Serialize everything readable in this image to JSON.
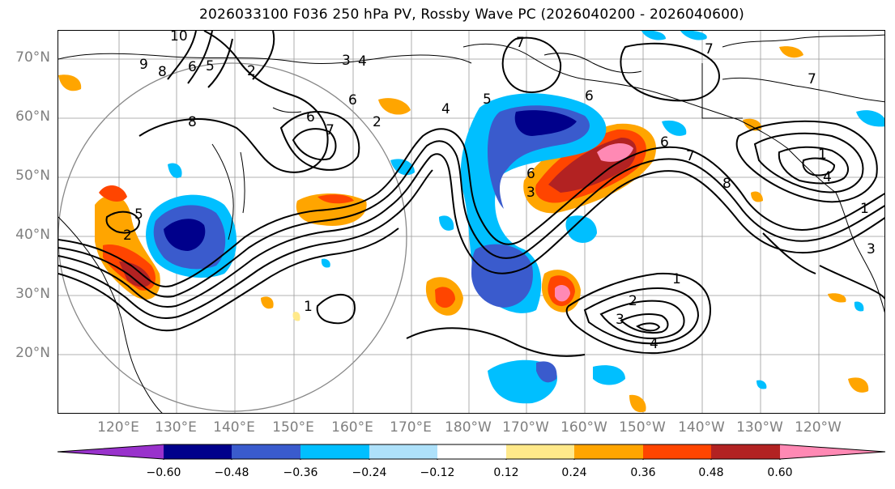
{
  "title": "2026033100 F036 250 hPa PV, Rossby Wave PC (2026040200 - 2026040600)",
  "map": {
    "lat_labels": [
      "70°N",
      "60°N",
      "50°N",
      "40°N",
      "30°N",
      "20°N"
    ],
    "lon_labels": [
      "120°E",
      "130°E",
      "140°E",
      "150°E",
      "160°E",
      "170°E",
      "180°W",
      "170°W",
      "160°W",
      "150°W",
      "140°W",
      "130°W",
      "120°W"
    ],
    "contour_labels": [
      "10",
      "9",
      "8",
      "6",
      "5",
      "2",
      "3",
      "4",
      "7",
      "6",
      "6",
      "7",
      "4",
      "5",
      "7",
      "6",
      "6",
      "7",
      "8",
      "5",
      "1",
      "2",
      "3",
      "4",
      "1",
      "3",
      "2",
      "1",
      "4",
      "6",
      "7",
      "8",
      "1",
      "3",
      "2"
    ]
  },
  "colorbar": {
    "ticks": [
      "−0.60",
      "−0.48",
      "−0.36",
      "−0.24",
      "−0.12",
      "0.12",
      "0.24",
      "0.36",
      "0.48",
      "0.60"
    ],
    "colors": [
      "#9932cc",
      "#00008b",
      "#3a5bcd",
      "#00bfff",
      "#aee1fa",
      "#ffffff",
      "#ffe98a",
      "#ffa500",
      "#ff4500",
      "#b22222",
      "#ff89b4"
    ]
  }
}
